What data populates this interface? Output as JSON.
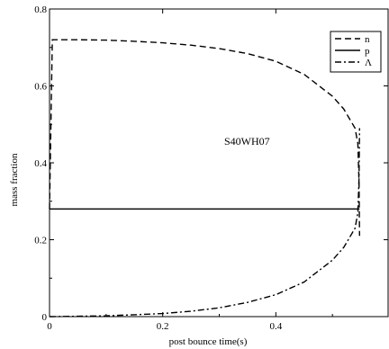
{
  "chart_data": {
    "type": "line",
    "xlabel": "post bounce time(s)",
    "ylabel": "mass fraction",
    "annotation": "S40WH07",
    "xlim": [
      0,
      0.6
    ],
    "ylim": [
      0,
      0.8
    ],
    "x_ticks": [
      0,
      0.2,
      0.4
    ],
    "x_tick_labels": [
      "0",
      "0.2",
      "0.4"
    ],
    "y_ticks": [
      0,
      0.2,
      0.4,
      0.6,
      0.8
    ],
    "y_tick_labels": [
      "0",
      "0.2",
      "0.4",
      "0.6",
      "0.8"
    ],
    "grid": false,
    "legend_position": "top-right",
    "series": [
      {
        "name": "n",
        "style": "dashed",
        "x": [
          0,
          0.005,
          0.05,
          0.1,
          0.15,
          0.2,
          0.25,
          0.3,
          0.35,
          0.4,
          0.45,
          0.5,
          0.52,
          0.54,
          0.545,
          0.547,
          0.548
        ],
        "y": [
          0.28,
          0.72,
          0.72,
          0.719,
          0.716,
          0.712,
          0.706,
          0.697,
          0.684,
          0.664,
          0.63,
          0.573,
          0.54,
          0.49,
          0.45,
          0.35,
          0.21
        ]
      },
      {
        "name": "p",
        "style": "solid",
        "x": [
          0,
          0.548
        ],
        "y": [
          0.28,
          0.28
        ]
      },
      {
        "name": "Λ",
        "style": "dashdot",
        "x": [
          0,
          0.005,
          0.05,
          0.1,
          0.15,
          0.2,
          0.25,
          0.3,
          0.35,
          0.4,
          0.45,
          0.5,
          0.52,
          0.54,
          0.545,
          0.547,
          0.548
        ],
        "y": [
          0.0,
          0.0,
          0.001,
          0.002,
          0.005,
          0.008,
          0.014,
          0.023,
          0.037,
          0.057,
          0.09,
          0.147,
          0.18,
          0.23,
          0.27,
          0.36,
          0.49
        ]
      }
    ]
  }
}
